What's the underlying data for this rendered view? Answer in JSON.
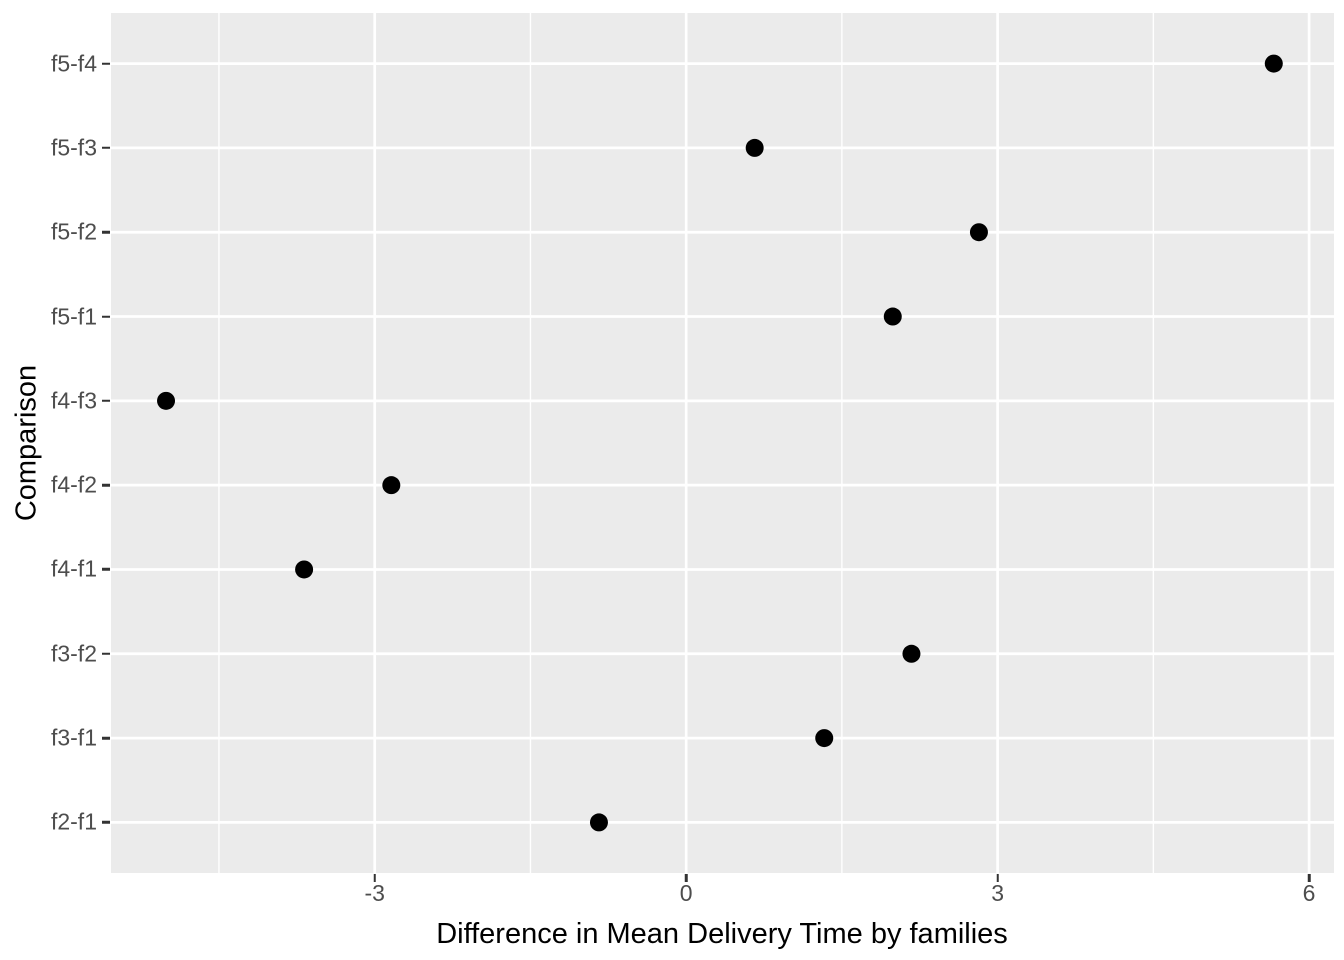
{
  "chart_data": {
    "type": "scatter",
    "subtype": "horizontal-dot-plot",
    "title": "",
    "xlabel": "Difference in Mean Delivery Time by families",
    "ylabel": "Comparison",
    "categories_top_to_bottom": [
      "f5-f4",
      "f5-f3",
      "f5-f2",
      "f5-f1",
      "f4-f3",
      "f4-f2",
      "f4-f1",
      "f3-f2",
      "f3-f1",
      "f2-f1"
    ],
    "values_top_to_bottom": [
      5.66,
      0.66,
      2.82,
      1.99,
      -5.01,
      -2.84,
      -3.68,
      2.17,
      1.33,
      -0.84
    ],
    "series": [
      {
        "name": "difference",
        "points": [
          {
            "comparison": "f2-f1",
            "difference": -0.84
          },
          {
            "comparison": "f3-f1",
            "difference": 1.33
          },
          {
            "comparison": "f3-f2",
            "difference": 2.17
          },
          {
            "comparison": "f4-f1",
            "difference": -3.68
          },
          {
            "comparison": "f4-f2",
            "difference": -2.84
          },
          {
            "comparison": "f4-f3",
            "difference": -5.01
          },
          {
            "comparison": "f5-f1",
            "difference": 1.99
          },
          {
            "comparison": "f5-f2",
            "difference": 2.82
          },
          {
            "comparison": "f5-f3",
            "difference": 0.66
          },
          {
            "comparison": "f5-f4",
            "difference": 5.66
          }
        ]
      }
    ],
    "xlim": [
      -5.54,
      6.24
    ],
    "x_major_ticks": [
      -3,
      0,
      3,
      6
    ],
    "x_major_tick_labels": [
      "-3",
      "0",
      "3",
      "6"
    ],
    "x_minor_gridlines": [
      -4.5,
      -1.5,
      1.5,
      4.5
    ],
    "grid": "major-and-minor-x, major-y-only",
    "legend": "none",
    "colors": {
      "panel_background": "#EBEBEB",
      "gridline": "#FFFFFF",
      "point": "#000000",
      "tick_label": "#4D4D4D",
      "axis_title": "#000000",
      "tick_mark": "#333333",
      "figure_background": "#FFFFFF"
    }
  }
}
